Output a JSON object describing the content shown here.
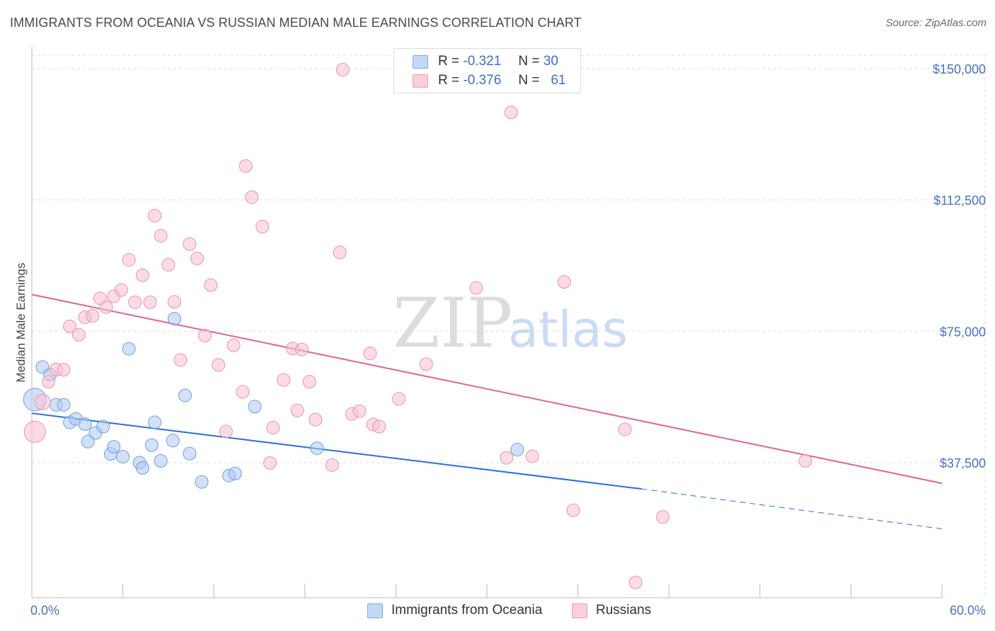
{
  "title": "IMMIGRANTS FROM OCEANIA VS RUSSIAN MEDIAN MALE EARNINGS CORRELATION CHART",
  "source": "Source: ZipAtlas.com",
  "watermark": {
    "zip": "ZIP",
    "atlas": "atlas"
  },
  "legend": {
    "rows": [
      {
        "r_label": "R =",
        "r_value": "-0.321",
        "n_label": "N =",
        "n_value": "30"
      },
      {
        "r_label": "R =",
        "r_value": "-0.376",
        "n_label": "N =",
        "n_value": "61"
      }
    ]
  },
  "colors": {
    "blue_fill": "#aec9f2",
    "blue_stroke": "#6e9de0",
    "blue_line": "#2a6fd6",
    "pink_fill": "#f7bfd0",
    "pink_stroke": "#e892ae",
    "pink_line": "#e0668f",
    "label_blue": "#4a72c4",
    "grid": "#dedede"
  },
  "chart_data": {
    "type": "scatter",
    "title": "IMMIGRANTS FROM OCEANIA VS RUSSIAN MEDIAN MALE EARNINGS CORRELATION CHART",
    "xlabel": "",
    "ylabel": "Median Male Earnings",
    "xlim": [
      0,
      60
    ],
    "ylim": [
      0,
      155000
    ],
    "x_tick_labels": [
      "0.0%",
      "60.0%"
    ],
    "y_ticks": [
      37500,
      75000,
      112500,
      150000
    ],
    "y_tick_labels": [
      "$37,500",
      "$75,000",
      "$112,500",
      "$150,000"
    ],
    "series": [
      {
        "name": "Immigrants from Oceania",
        "color": "blue",
        "points": [
          [
            0.2,
            55500,
            16
          ],
          [
            0.7,
            64800,
            9
          ],
          [
            1.2,
            62600,
            9
          ],
          [
            1.6,
            54000,
            9
          ],
          [
            2.1,
            54000,
            9
          ],
          [
            2.5,
            49000,
            9
          ],
          [
            2.9,
            50000,
            9
          ],
          [
            3.5,
            48500,
            9
          ],
          [
            3.7,
            43500,
            9
          ],
          [
            4.2,
            46000,
            9
          ],
          [
            4.7,
            47800,
            9
          ],
          [
            5.2,
            40000,
            9
          ],
          [
            5.4,
            42000,
            9
          ],
          [
            6.0,
            39200,
            9
          ],
          [
            6.4,
            70000,
            9
          ],
          [
            7.1,
            37500,
            9
          ],
          [
            7.3,
            36000,
            9
          ],
          [
            7.9,
            42500,
            9
          ],
          [
            8.1,
            49000,
            9
          ],
          [
            8.5,
            38000,
            9
          ],
          [
            9.3,
            43800,
            9
          ],
          [
            9.4,
            78600,
            9
          ],
          [
            10.1,
            56700,
            9
          ],
          [
            10.4,
            40100,
            9
          ],
          [
            11.2,
            32000,
            9
          ],
          [
            13.0,
            33800,
            9
          ],
          [
            13.4,
            34400,
            9
          ],
          [
            14.7,
            53500,
            9
          ],
          [
            18.8,
            41600,
            9
          ],
          [
            32.0,
            41200,
            9
          ]
        ],
        "trend": {
          "x": [
            0,
            40.2
          ],
          "y": [
            51600,
            30000
          ],
          "dashed_x": [
            40.2,
            60
          ],
          "dashed_y": [
            30000,
            18600
          ]
        }
      },
      {
        "name": "Russians",
        "color": "pink",
        "points": [
          [
            0.2,
            46300,
            15
          ],
          [
            0.7,
            54800,
            11
          ],
          [
            1.1,
            60600,
            9
          ],
          [
            1.6,
            64100,
            9
          ],
          [
            2.1,
            64000,
            9
          ],
          [
            2.5,
            76400,
            9
          ],
          [
            3.1,
            74000,
            9
          ],
          [
            3.5,
            79000,
            9
          ],
          [
            4.0,
            79400,
            9
          ],
          [
            4.5,
            84400,
            9
          ],
          [
            4.9,
            81900,
            9
          ],
          [
            5.4,
            85000,
            9
          ],
          [
            5.9,
            86800,
            9
          ],
          [
            6.4,
            95400,
            9
          ],
          [
            6.8,
            83300,
            9
          ],
          [
            7.3,
            91000,
            9
          ],
          [
            7.8,
            83300,
            9
          ],
          [
            8.1,
            108000,
            9
          ],
          [
            8.5,
            102300,
            9
          ],
          [
            9.0,
            94000,
            9
          ],
          [
            9.4,
            83400,
            9
          ],
          [
            9.8,
            66800,
            9
          ],
          [
            10.4,
            99900,
            9
          ],
          [
            10.9,
            95800,
            9
          ],
          [
            11.4,
            73800,
            9
          ],
          [
            11.8,
            88200,
            9
          ],
          [
            12.3,
            65400,
            9
          ],
          [
            12.8,
            46400,
            9
          ],
          [
            13.3,
            71000,
            9
          ],
          [
            13.9,
            57700,
            9
          ],
          [
            14.1,
            122200,
            9
          ],
          [
            14.5,
            113300,
            9
          ],
          [
            15.2,
            104900,
            9
          ],
          [
            15.7,
            37400,
            9
          ],
          [
            15.9,
            47500,
            9
          ],
          [
            16.6,
            61100,
            9
          ],
          [
            17.2,
            70100,
            9
          ],
          [
            17.5,
            52400,
            9
          ],
          [
            17.8,
            69800,
            9
          ],
          [
            18.3,
            60600,
            9
          ],
          [
            18.7,
            49800,
            9
          ],
          [
            19.8,
            36800,
            9
          ],
          [
            20.3,
            97500,
            9
          ],
          [
            20.5,
            149700,
            9
          ],
          [
            21.1,
            51400,
            9
          ],
          [
            21.6,
            52200,
            9
          ],
          [
            22.3,
            68700,
            9
          ],
          [
            22.5,
            48400,
            9
          ],
          [
            22.9,
            47800,
            9
          ],
          [
            24.2,
            55700,
            9
          ],
          [
            26.0,
            65600,
            9
          ],
          [
            29.3,
            87400,
            9
          ],
          [
            31.3,
            38900,
            9
          ],
          [
            31.6,
            137500,
            9
          ],
          [
            33.0,
            39300,
            9
          ],
          [
            35.1,
            89100,
            9
          ],
          [
            35.7,
            23900,
            9
          ],
          [
            39.1,
            47000,
            9
          ],
          [
            39.8,
            3300,
            9
          ],
          [
            41.6,
            22000,
            9
          ],
          [
            51.0,
            38000,
            9
          ]
        ],
        "trend": {
          "x": [
            0,
            60
          ],
          "y": [
            85500,
            31600
          ]
        }
      }
    ]
  },
  "bottom_legend": [
    {
      "label": "Immigrants from Oceania"
    },
    {
      "label": "Russians"
    }
  ]
}
